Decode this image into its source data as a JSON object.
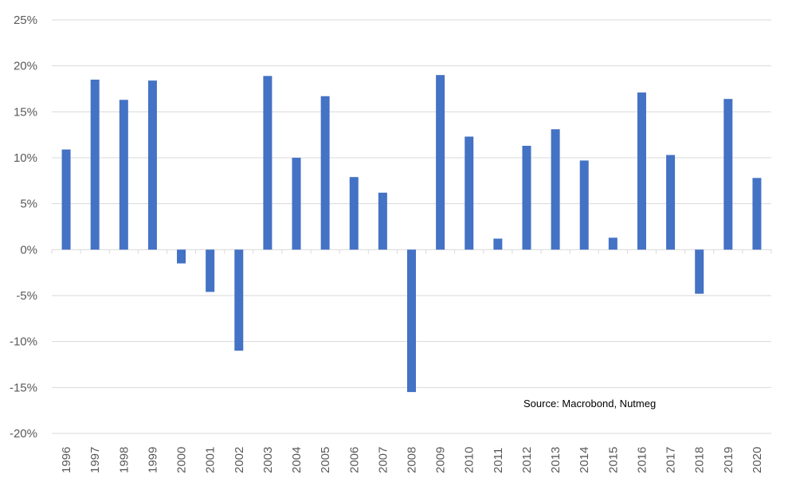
{
  "chart_data": {
    "type": "bar",
    "categories": [
      "1996",
      "1997",
      "1998",
      "1999",
      "2000",
      "2001",
      "2002",
      "2003",
      "2004",
      "2005",
      "2006",
      "2007",
      "2008",
      "2009",
      "2010",
      "2011",
      "2012",
      "2013",
      "2014",
      "2015",
      "2016",
      "2017",
      "2018",
      "2019",
      "2020"
    ],
    "values": [
      10.9,
      18.5,
      16.3,
      18.4,
      -1.5,
      -4.6,
      -11.0,
      18.9,
      10.0,
      16.7,
      7.9,
      6.2,
      -15.5,
      19.0,
      12.3,
      1.2,
      11.3,
      13.1,
      9.7,
      1.3,
      17.1,
      10.3,
      -4.8,
      16.4,
      7.8
    ],
    "title": "",
    "xlabel": "",
    "ylabel": "",
    "ylim": [
      -20,
      25
    ],
    "y_ticks": [
      "25%",
      "20%",
      "15%",
      "10%",
      "5%",
      "0%",
      "-5%",
      "-10%",
      "-15%",
      "-20%"
    ],
    "y_tick_values": [
      25,
      20,
      15,
      10,
      5,
      0,
      -5,
      -10,
      -15,
      -20
    ],
    "grid": true,
    "legend": "none",
    "bar_color": "#4472C4",
    "gridline_color": "#D9D9D9",
    "source_note": "Source:  Macrobond, Nutmeg"
  }
}
